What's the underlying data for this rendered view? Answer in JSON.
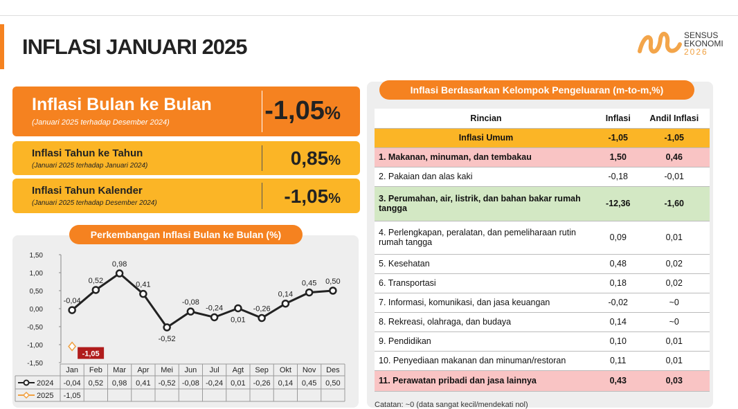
{
  "header": {
    "title": "INFLASI JANUARI 2025",
    "logo": [
      "SENSUS",
      "EKONOMI",
      "2026"
    ]
  },
  "cards": [
    {
      "title": "Inflasi Bulan ke Bulan",
      "subtitle": "(Januari 2025 terhadap Desember 2024)",
      "value": "-1,05",
      "unit": "%"
    },
    {
      "title": "Inflasi Tahun ke Tahun",
      "subtitle": "(Januari 2025 terhadap Januari 2024)",
      "value": "0,85",
      "unit": "%"
    },
    {
      "title": "Inflasi Tahun Kalender",
      "subtitle": "(Januari 2025 terhadap Desember 2024)",
      "value": "-1,05",
      "unit": "%"
    }
  ],
  "chart_data": {
    "type": "line",
    "title": "Perkembangan Inflasi Bulan ke Bulan (%)",
    "categories": [
      "Jan",
      "Feb",
      "Mar",
      "Apr",
      "Mei",
      "Jun",
      "Jul",
      "Agt",
      "Sep",
      "Okt",
      "Nov",
      "Des"
    ],
    "series": [
      {
        "name": "2024",
        "color": "#222222",
        "values": [
          -0.04,
          0.52,
          0.98,
          0.41,
          -0.52,
          -0.08,
          -0.24,
          0.01,
          -0.26,
          0.14,
          0.45,
          0.5
        ],
        "value_labels": [
          "-0,04",
          "0,52",
          "0,98",
          "0,41",
          "-0,52",
          "-0,08",
          "-0,24",
          "0,01",
          "-0,26",
          "0,14",
          "0,45",
          "0,50"
        ]
      },
      {
        "name": "2025",
        "color": "#f0a040",
        "values": [
          -1.05,
          null,
          null,
          null,
          null,
          null,
          null,
          null,
          null,
          null,
          null,
          null
        ],
        "value_labels": [
          "-1,05",
          null,
          null,
          null,
          null,
          null,
          null,
          null,
          null,
          null,
          null,
          null
        ]
      }
    ],
    "ylim": [
      -1.5,
      1.5
    ],
    "yticks": [
      {
        "value": -1.5,
        "label": "-1,50"
      },
      {
        "value": -1,
        "label": "-1,00"
      },
      {
        "value": -0.5,
        "label": "-0,50"
      },
      {
        "value": 0,
        "label": "0,00"
      },
      {
        "value": 0.5,
        "label": "0,50"
      },
      {
        "value": 1,
        "label": "1,00"
      },
      {
        "value": 1.5,
        "label": "1,50"
      }
    ]
  },
  "table": {
    "title": "Inflasi Berdasarkan Kelompok Pengeluaran (m-to-m,%)",
    "headers": [
      "Rincian",
      "Inflasi",
      "Andil Inflasi"
    ],
    "rows": [
      [
        "Inflasi Umum",
        "-1,05",
        "-1,05"
      ],
      [
        "1. Makanan, minuman, dan tembakau",
        "1,50",
        "0,46"
      ],
      [
        "2. Pakaian dan alas kaki",
        "-0,18",
        "-0,01"
      ],
      [
        "3. Perumahan, air, listrik, dan bahan bakar rumah tangga",
        "-12,36",
        "-1,60"
      ],
      [
        "4. Perlengkapan, peralatan, dan pemeliharaan rutin rumah tangga",
        "0,09",
        "0,01"
      ],
      [
        "5. Kesehatan",
        "0,48",
        "0,02"
      ],
      [
        "6. Transportasi",
        "0,18",
        "0,02"
      ],
      [
        "7. Informasi, komunikasi, dan jasa keuangan",
        "-0,02",
        "~0"
      ],
      [
        "8. Rekreasi, olahraga, dan budaya",
        "0,14",
        "~0"
      ],
      [
        "9. Pendidikan",
        "0,10",
        "0,01"
      ],
      [
        "10. Penyediaan makanan dan minuman/restoran",
        "0,11",
        "0,01"
      ],
      [
        "11. Perawatan pribadi dan jasa lainnya",
        "0,43",
        "0,03"
      ]
    ],
    "note": "Catatan: ~0 (data sangat kecil/mendekati nol)"
  }
}
